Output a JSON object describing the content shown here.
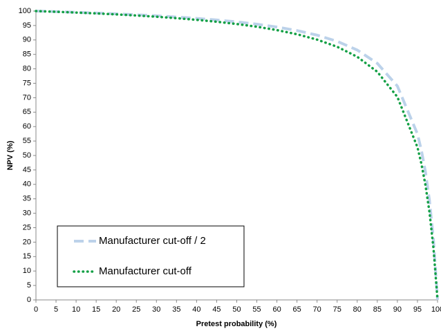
{
  "chart_data": {
    "type": "line",
    "x_label": "Pretest probability (%)",
    "y_label": "NPV (%)",
    "x": [
      0,
      5,
      10,
      15,
      20,
      25,
      30,
      35,
      40,
      45,
      50,
      55,
      60,
      65,
      70,
      75,
      80,
      85,
      90,
      95,
      96,
      97,
      98,
      99,
      100
    ],
    "series": [
      {
        "name": "Manufacturer cut-off / 2",
        "color": "#bcd2ea",
        "style": "dashed",
        "values": [
          100,
          99.8,
          99.57,
          99.32,
          99.03,
          98.72,
          98.36,
          97.94,
          97.47,
          96.91,
          96.25,
          95.45,
          94.47,
          93.25,
          91.66,
          89.53,
          86.51,
          81.9,
          74.02,
          57.44,
          51.65,
          44.23,
          34.35,
          20.57,
          0
        ]
      },
      {
        "name": "Manufacturer cut-off",
        "color": "#14a046",
        "style": "dotted",
        "values": [
          100,
          99.75,
          99.48,
          99.18,
          98.84,
          98.46,
          98.03,
          97.53,
          96.96,
          96.3,
          95.51,
          94.57,
          93.41,
          91.97,
          90.11,
          87.64,
          84.18,
          78.97,
          70.27,
          52.83,
          46.99,
          39.69,
          30.28,
          17.69,
          0
        ]
      }
    ],
    "xlim": [
      0,
      100
    ],
    "xticks": [
      0,
      5,
      10,
      15,
      20,
      25,
      30,
      35,
      40,
      45,
      50,
      55,
      60,
      65,
      70,
      75,
      80,
      85,
      90,
      95,
      100
    ],
    "ylim": [
      0,
      100
    ],
    "yticks": [
      0,
      5,
      10,
      15,
      20,
      25,
      30,
      35,
      40,
      45,
      50,
      55,
      60,
      65,
      70,
      75,
      80,
      85,
      90,
      95,
      100
    ],
    "grid": false,
    "legend": "lower left"
  }
}
